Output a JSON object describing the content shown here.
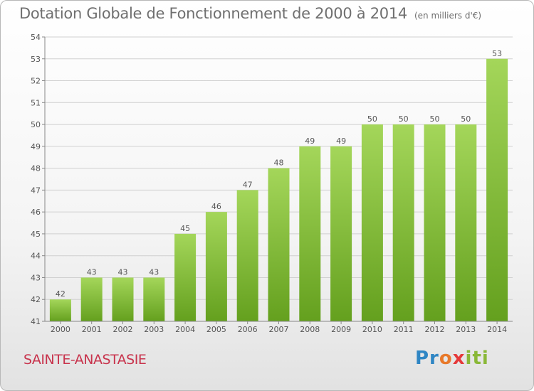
{
  "header": {
    "title": "Dotation Globale de Fonctionnement de 2000 à 2014",
    "unit": "(en milliers d'€)"
  },
  "footer": {
    "city": "SAINTE-ANASTASIE",
    "logo": {
      "p": "Pr",
      "o": "o",
      "x": "x",
      "iti": "iti"
    }
  },
  "colors": {
    "bar_top": "#a4d65a",
    "bar_bottom": "#64a01e",
    "grid": "#d0d0d0",
    "title": "#6f6f6f",
    "city": "#c8344d"
  },
  "chart_data": {
    "type": "bar",
    "title": "Dotation Globale de Fonctionnement de 2000 à 2014",
    "xlabel": "",
    "ylabel": "",
    "categories": [
      "2000",
      "2001",
      "2002",
      "2003",
      "2004",
      "2005",
      "2006",
      "2007",
      "2008",
      "2009",
      "2010",
      "2011",
      "2012",
      "2013",
      "2014"
    ],
    "values": [
      42,
      43,
      43,
      43,
      45,
      46,
      47,
      48,
      49,
      49,
      50,
      50,
      50,
      50,
      53
    ],
    "ylim": [
      41,
      54
    ],
    "yticks": [
      41,
      42,
      43,
      44,
      45,
      46,
      47,
      48,
      49,
      50,
      51,
      52,
      53,
      54
    ],
    "grid": true,
    "legend": "none"
  }
}
